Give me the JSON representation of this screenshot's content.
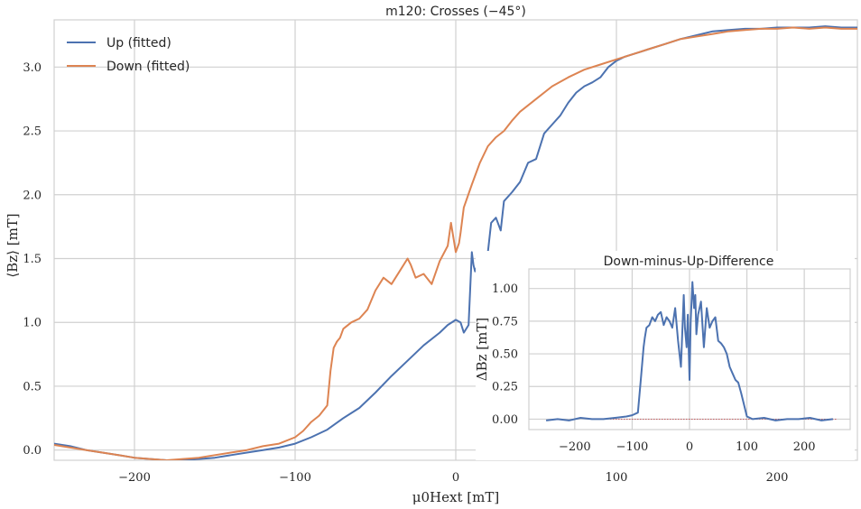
{
  "chart_data": [
    {
      "id": "main",
      "type": "line",
      "title": "m120: Crosses (−45°)",
      "xlabel": "μ0Hext [mT]",
      "ylabel": "⟨Bz⟩ [mT]",
      "xlim": [
        -250,
        250
      ],
      "ylim": [
        -0.08,
        3.37
      ],
      "xticks": [
        -200,
        -100,
        0,
        100,
        200
      ],
      "xtick_labels": [
        "−200",
        "−100",
        "0",
        "100",
        "200"
      ],
      "yticks": [
        0.0,
        0.5,
        1.0,
        1.5,
        2.0,
        2.5,
        3.0
      ],
      "ytick_labels": [
        "0.0",
        "0.5",
        "1.0",
        "1.5",
        "2.0",
        "2.5",
        "3.0"
      ],
      "grid": true,
      "legend_position": "top-left",
      "series": [
        {
          "name": "Up (fitted)",
          "color": "#4C72B0",
          "x": [
            -250,
            -240,
            -230,
            -220,
            -210,
            -200,
            -190,
            -180,
            -170,
            -160,
            -150,
            -140,
            -130,
            -120,
            -110,
            -100,
            -90,
            -80,
            -70,
            -60,
            -50,
            -40,
            -30,
            -20,
            -10,
            -5,
            0,
            3,
            5,
            8,
            10,
            11,
            12,
            15,
            18,
            20,
            22,
            25,
            28,
            30,
            35,
            40,
            45,
            50,
            55,
            60,
            65,
            70,
            75,
            80,
            85,
            90,
            95,
            100,
            105,
            110,
            115,
            120,
            130,
            140,
            150,
            160,
            170,
            180,
            190,
            200,
            210,
            220,
            230,
            240,
            250
          ],
          "y": [
            0.05,
            0.03,
            0.0,
            -0.02,
            -0.04,
            -0.06,
            -0.07,
            -0.08,
            -0.08,
            -0.07,
            -0.06,
            -0.04,
            -0.02,
            0.0,
            0.02,
            0.05,
            0.1,
            0.16,
            0.25,
            0.33,
            0.45,
            0.58,
            0.7,
            0.82,
            0.92,
            0.98,
            1.02,
            1.0,
            0.92,
            0.98,
            1.55,
            1.45,
            1.4,
            1.5,
            1.45,
            1.55,
            1.78,
            1.82,
            1.72,
            1.95,
            2.02,
            2.1,
            2.25,
            2.28,
            2.48,
            2.55,
            2.62,
            2.72,
            2.8,
            2.85,
            2.88,
            2.92,
            3.0,
            3.05,
            3.08,
            3.1,
            3.12,
            3.14,
            3.18,
            3.22,
            3.25,
            3.28,
            3.29,
            3.3,
            3.3,
            3.31,
            3.31,
            3.31,
            3.32,
            3.31,
            3.31
          ]
        },
        {
          "name": "Down (fitted)",
          "color": "#DD8452",
          "x": [
            -250,
            -240,
            -230,
            -220,
            -210,
            -200,
            -190,
            -180,
            -170,
            -160,
            -150,
            -140,
            -130,
            -120,
            -110,
            -100,
            -95,
            -90,
            -85,
            -80,
            -78,
            -76,
            -74,
            -72,
            -70,
            -65,
            -60,
            -55,
            -50,
            -45,
            -40,
            -35,
            -30,
            -28,
            -25,
            -20,
            -15,
            -10,
            -5,
            -3,
            0,
            2,
            3,
            5,
            10,
            15,
            20,
            25,
            30,
            35,
            40,
            50,
            60,
            70,
            80,
            90,
            100,
            110,
            120,
            130,
            140,
            150,
            160,
            170,
            180,
            190,
            200,
            210,
            220,
            230,
            240,
            250
          ],
          "y": [
            0.04,
            0.02,
            0.0,
            -0.02,
            -0.04,
            -0.06,
            -0.07,
            -0.08,
            -0.07,
            -0.06,
            -0.04,
            -0.02,
            0.0,
            0.03,
            0.05,
            0.1,
            0.15,
            0.22,
            0.27,
            0.35,
            0.62,
            0.8,
            0.85,
            0.88,
            0.95,
            1.0,
            1.03,
            1.1,
            1.25,
            1.35,
            1.3,
            1.4,
            1.5,
            1.45,
            1.35,
            1.38,
            1.3,
            1.48,
            1.6,
            1.78,
            1.55,
            1.62,
            1.7,
            1.9,
            2.08,
            2.25,
            2.38,
            2.45,
            2.5,
            2.58,
            2.65,
            2.75,
            2.85,
            2.92,
            2.98,
            3.02,
            3.06,
            3.1,
            3.14,
            3.18,
            3.22,
            3.24,
            3.26,
            3.28,
            3.29,
            3.3,
            3.3,
            3.31,
            3.3,
            3.31,
            3.3,
            3.3
          ]
        }
      ]
    },
    {
      "id": "inset",
      "type": "line",
      "title": "Down-minus-Up-Difference",
      "xlabel": "",
      "ylabel": "ΔBz [mT]",
      "xlim": [
        -280,
        280
      ],
      "ylim": [
        -0.08,
        1.15
      ],
      "xticks": [
        -200,
        -100,
        0,
        100,
        200
      ],
      "xtick_labels": [
        "−200",
        "−100",
        "0",
        "100",
        "200"
      ],
      "yticks": [
        0.0,
        0.25,
        0.5,
        0.75,
        1.0
      ],
      "ytick_labels": [
        "0.00",
        "0.25",
        "0.50",
        "0.75",
        "1.00"
      ],
      "grid": true,
      "reference_line": {
        "y": 0,
        "color": "#C44E52"
      },
      "series": [
        {
          "color": "#4C72B0",
          "x": [
            -250,
            -230,
            -210,
            -190,
            -170,
            -150,
            -130,
            -110,
            -100,
            -90,
            -85,
            -80,
            -78,
            -75,
            -70,
            -65,
            -60,
            -55,
            -50,
            -45,
            -40,
            -35,
            -30,
            -25,
            -20,
            -15,
            -10,
            -8,
            -5,
            -3,
            0,
            2,
            5,
            8,
            10,
            12,
            15,
            20,
            25,
            30,
            35,
            40,
            45,
            50,
            55,
            60,
            65,
            70,
            75,
            80,
            85,
            90,
            100,
            110,
            130,
            150,
            170,
            190,
            210,
            230,
            250
          ],
          "y": [
            -0.01,
            0.0,
            -0.01,
            0.01,
            0.0,
            0.0,
            0.01,
            0.02,
            0.03,
            0.05,
            0.3,
            0.55,
            0.62,
            0.7,
            0.72,
            0.78,
            0.75,
            0.8,
            0.82,
            0.72,
            0.78,
            0.75,
            0.7,
            0.85,
            0.6,
            0.4,
            0.95,
            0.7,
            0.55,
            0.8,
            0.3,
            0.75,
            1.05,
            0.85,
            0.95,
            0.65,
            0.8,
            0.9,
            0.55,
            0.85,
            0.7,
            0.75,
            0.78,
            0.6,
            0.58,
            0.55,
            0.5,
            0.4,
            0.35,
            0.3,
            0.28,
            0.2,
            0.02,
            0.0,
            0.01,
            -0.01,
            0.0,
            0.0,
            0.01,
            -0.01,
            0.0
          ]
        }
      ]
    }
  ]
}
